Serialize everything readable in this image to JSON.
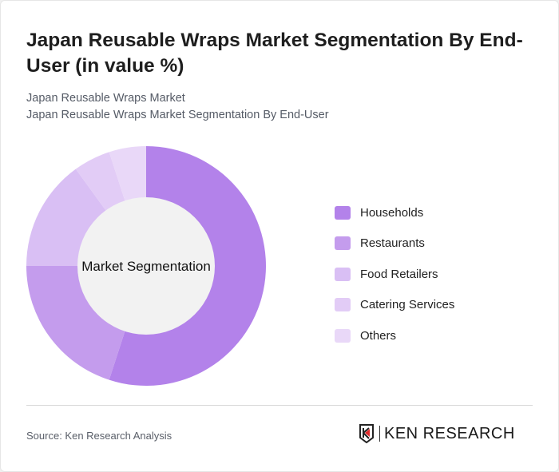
{
  "header": {
    "title": "Japan Reusable Wraps Market Segmentation By End-User (in value %)",
    "subtitle_1": "Japan Reusable Wraps Market",
    "subtitle_2": "Japan Reusable Wraps Market Segmentation By End-User"
  },
  "chart_data": {
    "type": "pie",
    "variant": "donut",
    "center_label": "Market Segmentation",
    "categories": [
      "Households",
      "Restaurants",
      "Food Retailers",
      "Catering Services",
      "Others"
    ],
    "values": [
      55,
      20,
      15,
      5,
      5
    ],
    "colors": [
      "#b382ea",
      "#c49ced",
      "#d9bff4",
      "#e2ccf6",
      "#e9d8f8"
    ],
    "legend_position": "right"
  },
  "footer": {
    "source": "Source: Ken Research Analysis",
    "logo_text": "KEN RESEARCH"
  }
}
